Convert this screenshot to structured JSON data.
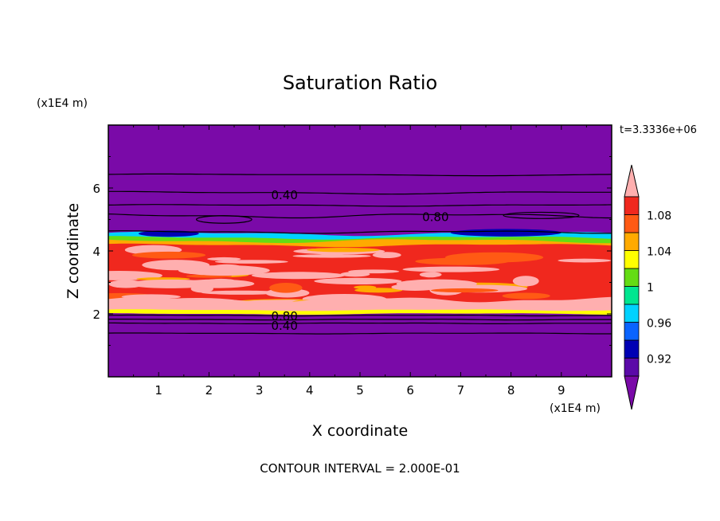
{
  "chart_data": {
    "type": "heatmap",
    "title": "Saturation Ratio",
    "xlabel": "X coordinate",
    "ylabel": "Z coordinate",
    "x_unit": "(x1E4 m)",
    "z_unit": "(x1E4 m)",
    "time_label": "t=3.3336e+06",
    "footer": "CONTOUR INTERVAL = 2.000E-01",
    "xlim": [
      0,
      10
    ],
    "ylim": [
      0,
      8
    ],
    "x_ticks": [
      "1",
      "2",
      "3",
      "4",
      "5",
      "6",
      "7",
      "8",
      "9"
    ],
    "y_ticks": [
      "2",
      "4",
      "6"
    ],
    "x_tick_values": [
      1,
      2,
      3,
      4,
      5,
      6,
      7,
      8,
      9
    ],
    "y_tick_values": [
      2,
      4,
      6
    ],
    "colorbar": {
      "levels": [
        0.9,
        0.92,
        0.94,
        0.96,
        0.98,
        1.0,
        1.02,
        1.04,
        1.06,
        1.08,
        1.1
      ],
      "tick_labels": [
        "0.92",
        "0.96",
        "1",
        "1.04",
        "1.08"
      ],
      "tick_values": [
        0.92,
        0.96,
        1.0,
        1.04,
        1.08
      ],
      "colors": [
        "#5b0aa8",
        "#0000b4",
        "#0a64ff",
        "#00d2ff",
        "#00e690",
        "#64dc14",
        "#ffff00",
        "#ffaa00",
        "#ff5a14",
        "#f0281e"
      ],
      "under_color": "#7a0aa8",
      "over_color": "#ffafaf"
    },
    "contour_labels": [
      {
        "text": "0.40",
        "x": 3.5,
        "z": 5.8
      },
      {
        "text": "0.80",
        "x": 6.5,
        "z": 5.1
      },
      {
        "text": "0.80",
        "x": 3.5,
        "z": 1.95
      },
      {
        "text": "0.40",
        "x": 3.5,
        "z": 1.65
      }
    ]
  }
}
